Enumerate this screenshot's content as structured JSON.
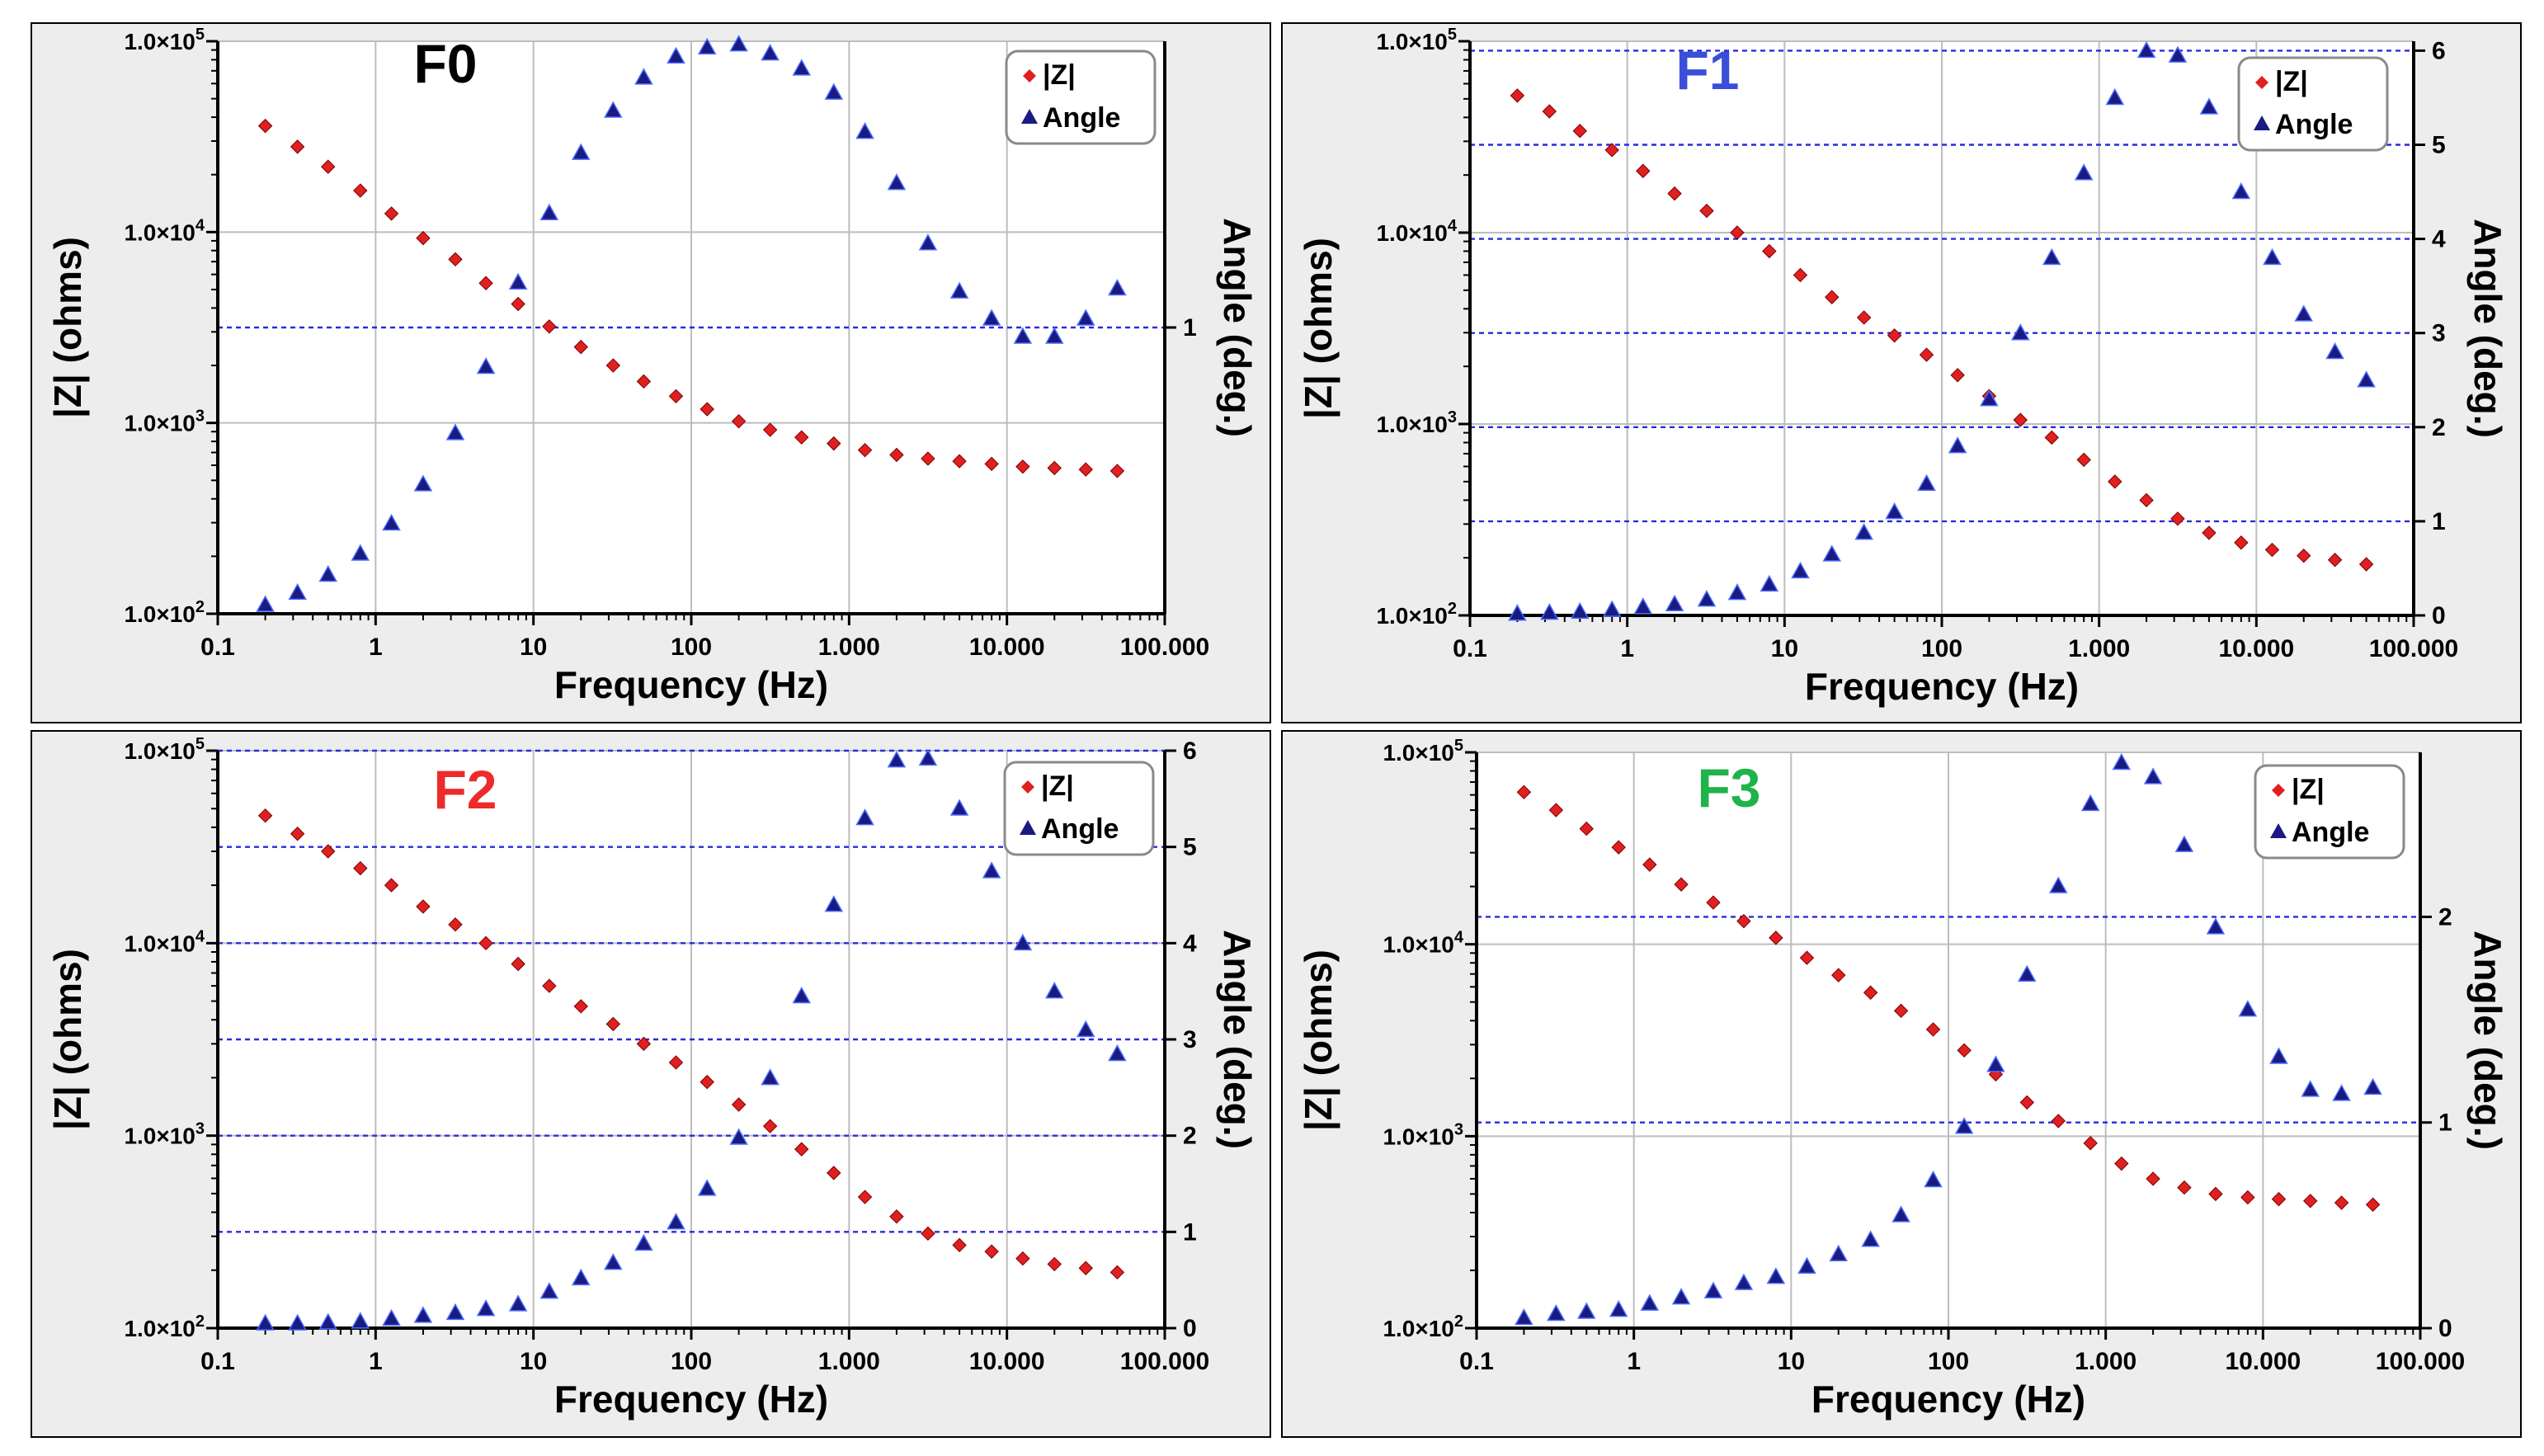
{
  "colors": {
    "panel_background": "#ededed",
    "plot_background": "#ffffff",
    "grid": "#bdbdbd",
    "dashed_grid": "#2a2ae0",
    "z_marker": "#e02020",
    "angle_marker": "#1a1a80",
    "text": "#000000"
  },
  "chart_data": [
    {
      "type": "scatter",
      "title": "F0",
      "title_color": "#000000",
      "xlabel": "Frequency  (Hz)",
      "ylabel_left": "|Z|  (ohms)",
      "ylabel_right": "Angle  (deg.)",
      "x_scale": "log",
      "xlim": [
        0.1,
        100000
      ],
      "x_ticks": [
        {
          "v": 0.1,
          "label": "0.1"
        },
        {
          "v": 1,
          "label": "1"
        },
        {
          "v": 10,
          "label": "10"
        },
        {
          "v": 100,
          "label": "100"
        },
        {
          "v": 1000,
          "label": "1.000"
        },
        {
          "v": 10000,
          "label": "10.000"
        },
        {
          "v": 100000,
          "label": "100.000"
        }
      ],
      "y_left_scale": "log",
      "ylim_left": [
        100,
        100000
      ],
      "y_left_ticks": [
        {
          "v": 100,
          "m": "1.0×10",
          "e": "2"
        },
        {
          "v": 1000,
          "m": "1.0×10",
          "e": "3"
        },
        {
          "v": 10000,
          "m": "1.0×10",
          "e": "4"
        },
        {
          "v": 100000,
          "m": "1.0×10",
          "e": "5"
        }
      ],
      "ylim_right": [
        0.05,
        1.95
      ],
      "y_right_ticks": [
        {
          "v": 1,
          "label": "1"
        }
      ],
      "dashed_gridlines_right": [
        1
      ],
      "legend": [
        "|Z|",
        "Angle"
      ],
      "legend_position": "top-right",
      "series": [
        {
          "name": "|Z|",
          "marker": "diamond",
          "x": [
            0.2,
            0.32,
            0.5,
            0.8,
            1.26,
            2,
            3.2,
            5,
            8,
            12.6,
            20,
            32,
            50,
            80,
            126,
            200,
            316,
            500,
            800,
            1260,
            2000,
            3160,
            5000,
            8000,
            12600,
            20000,
            31600,
            50000
          ],
          "y": [
            36000,
            28000,
            22000,
            16500,
            12500,
            9300,
            7200,
            5400,
            4200,
            3200,
            2500,
            2000,
            1650,
            1380,
            1180,
            1020,
            920,
            840,
            780,
            720,
            680,
            650,
            630,
            610,
            590,
            580,
            570,
            560
          ]
        },
        {
          "name": "Angle",
          "marker": "triangle",
          "x": [
            0.2,
            0.32,
            0.5,
            0.8,
            1.26,
            2,
            3.2,
            5,
            8,
            12.6,
            20,
            32,
            50,
            80,
            126,
            200,
            316,
            500,
            800,
            1260,
            2000,
            3160,
            5000,
            8000,
            12600,
            20000,
            31600,
            50000
          ],
          "y": [
            0.08,
            0.12,
            0.18,
            0.25,
            0.35,
            0.48,
            0.65,
            0.87,
            1.15,
            1.38,
            1.58,
            1.72,
            1.83,
            1.9,
            1.93,
            1.94,
            1.91,
            1.86,
            1.78,
            1.65,
            1.48,
            1.28,
            1.12,
            1.03,
            0.97,
            0.97,
            1.03,
            1.13
          ]
        }
      ]
    },
    {
      "type": "scatter",
      "title": "F1",
      "title_color": "#3a4fd8",
      "xlabel": "Frequency  (Hz)",
      "ylabel_left": "|Z|  (ohms)",
      "ylabel_right": "Angle  (deg.)",
      "x_scale": "log",
      "xlim": [
        0.1,
        100000
      ],
      "x_ticks": [
        {
          "v": 0.1,
          "label": "0.1"
        },
        {
          "v": 1,
          "label": "1"
        },
        {
          "v": 10,
          "label": "10"
        },
        {
          "v": 100,
          "label": "100"
        },
        {
          "v": 1000,
          "label": "1.000"
        },
        {
          "v": 10000,
          "label": "10.000"
        },
        {
          "v": 100000,
          "label": "100.000"
        }
      ],
      "y_left_scale": "log",
      "ylim_left": [
        100,
        100000
      ],
      "y_left_ticks": [
        {
          "v": 100,
          "m": "1.0×10",
          "e": "2"
        },
        {
          "v": 1000,
          "m": "1.0×10",
          "e": "3"
        },
        {
          "v": 10000,
          "m": "1.0×10",
          "e": "4"
        },
        {
          "v": 100000,
          "m": "1.0×10",
          "e": "5"
        }
      ],
      "ylim_right": [
        0,
        6.1
      ],
      "y_right_ticks": [
        {
          "v": 0,
          "label": "0"
        },
        {
          "v": 1,
          "label": "1"
        },
        {
          "v": 2,
          "label": "2"
        },
        {
          "v": 3,
          "label": "3"
        },
        {
          "v": 4,
          "label": "4"
        },
        {
          "v": 5,
          "label": "5"
        },
        {
          "v": 6,
          "label": "6"
        }
      ],
      "dashed_gridlines_right": [
        1,
        2,
        3,
        4,
        5,
        6
      ],
      "legend": [
        "|Z|",
        "Angle"
      ],
      "legend_position": "top-right",
      "series": [
        {
          "name": "|Z|",
          "marker": "diamond",
          "x": [
            0.2,
            0.32,
            0.5,
            0.8,
            1.26,
            2,
            3.2,
            5,
            8,
            12.6,
            20,
            32,
            50,
            80,
            126,
            200,
            316,
            500,
            800,
            1260,
            2000,
            3160,
            5000,
            8000,
            12600,
            20000,
            31600,
            50000
          ],
          "y": [
            52000,
            43000,
            34000,
            27000,
            21000,
            16000,
            13000,
            10000,
            8000,
            6000,
            4600,
            3600,
            2900,
            2300,
            1800,
            1400,
            1050,
            850,
            650,
            500,
            400,
            320,
            270,
            240,
            220,
            205,
            195,
            185
          ]
        },
        {
          "name": "Angle",
          "marker": "triangle",
          "x": [
            0.2,
            0.32,
            0.5,
            0.8,
            1.26,
            2,
            3.2,
            5,
            8,
            12.6,
            20,
            32,
            50,
            80,
            126,
            200,
            316,
            500,
            800,
            1260,
            2000,
            3160,
            5000,
            8000,
            12600,
            20000,
            31600,
            50000
          ],
          "y": [
            0.02,
            0.03,
            0.04,
            0.06,
            0.09,
            0.12,
            0.17,
            0.24,
            0.33,
            0.47,
            0.65,
            0.88,
            1.1,
            1.4,
            1.8,
            2.3,
            3.0,
            3.8,
            4.7,
            5.5,
            6.0,
            5.95,
            5.4,
            4.5,
            3.8,
            3.2,
            2.8,
            2.5
          ]
        }
      ]
    },
    {
      "type": "scatter",
      "title": "F2",
      "title_color": "#ee2b2b",
      "xlabel": "Frequency  (Hz)",
      "ylabel_left": "|Z|  (ohms)",
      "ylabel_right": "Angle  (deg.)",
      "x_scale": "log",
      "xlim": [
        0.1,
        100000
      ],
      "x_ticks": [
        {
          "v": 0.1,
          "label": "0.1"
        },
        {
          "v": 1,
          "label": "1"
        },
        {
          "v": 10,
          "label": "10"
        },
        {
          "v": 100,
          "label": "100"
        },
        {
          "v": 1000,
          "label": "1.000"
        },
        {
          "v": 10000,
          "label": "10.000"
        },
        {
          "v": 100000,
          "label": "100.000"
        }
      ],
      "y_left_scale": "log",
      "ylim_left": [
        100,
        100000
      ],
      "y_left_ticks": [
        {
          "v": 100,
          "m": "1.0×10",
          "e": "2"
        },
        {
          "v": 1000,
          "m": "1.0×10",
          "e": "3"
        },
        {
          "v": 10000,
          "m": "1.0×10",
          "e": "4"
        },
        {
          "v": 100000,
          "m": "1.0×10",
          "e": "5"
        }
      ],
      "ylim_right": [
        0,
        6
      ],
      "y_right_ticks": [
        {
          "v": 0,
          "label": "0"
        },
        {
          "v": 1,
          "label": "1"
        },
        {
          "v": 2,
          "label": "2"
        },
        {
          "v": 3,
          "label": "3"
        },
        {
          "v": 4,
          "label": "4"
        },
        {
          "v": 5,
          "label": "5"
        },
        {
          "v": 6,
          "label": "6"
        }
      ],
      "dashed_gridlines_right": [
        1,
        2,
        3,
        4,
        5,
        6
      ],
      "legend": [
        "|Z|",
        "Angle"
      ],
      "legend_position": "top-right",
      "series": [
        {
          "name": "|Z|",
          "marker": "diamond",
          "x": [
            0.2,
            0.32,
            0.5,
            0.8,
            1.26,
            2,
            3.2,
            5,
            8,
            12.6,
            20,
            32,
            50,
            80,
            126,
            200,
            316,
            500,
            800,
            1260,
            2000,
            3160,
            5000,
            8000,
            12600,
            20000,
            31600,
            50000
          ],
          "y": [
            46000,
            37000,
            30000,
            24500,
            20000,
            15500,
            12500,
            10000,
            7800,
            6000,
            4700,
            3800,
            3000,
            2400,
            1900,
            1450,
            1120,
            850,
            640,
            480,
            380,
            310,
            270,
            250,
            230,
            215,
            205,
            195
          ]
        },
        {
          "name": "Angle",
          "marker": "triangle",
          "x": [
            0.2,
            0.32,
            0.5,
            0.8,
            1.26,
            2,
            3.2,
            5,
            8,
            12.6,
            20,
            32,
            50,
            80,
            126,
            200,
            316,
            500,
            800,
            1260,
            2000,
            3160,
            5000,
            8000,
            12600,
            20000,
            31600,
            50000
          ],
          "y": [
            0.05,
            0.05,
            0.06,
            0.07,
            0.1,
            0.13,
            0.16,
            0.2,
            0.25,
            0.38,
            0.52,
            0.68,
            0.88,
            1.1,
            1.45,
            1.98,
            2.6,
            3.45,
            4.4,
            5.3,
            5.9,
            5.92,
            5.4,
            4.75,
            4.0,
            3.5,
            3.1,
            2.85
          ]
        }
      ]
    },
    {
      "type": "scatter",
      "title": "F3",
      "title_color": "#1fb34a",
      "xlabel": "Frequency  (Hz)",
      "ylabel_left": "|Z|  (ohms)",
      "ylabel_right": "Angle  (deg.)",
      "x_scale": "log",
      "xlim": [
        0.1,
        100000
      ],
      "x_ticks": [
        {
          "v": 0.1,
          "label": "0.1"
        },
        {
          "v": 1,
          "label": "1"
        },
        {
          "v": 10,
          "label": "10"
        },
        {
          "v": 100,
          "label": "100"
        },
        {
          "v": 1000,
          "label": "1.000"
        },
        {
          "v": 10000,
          "label": "10.000"
        },
        {
          "v": 100000,
          "label": "100.000"
        }
      ],
      "y_left_scale": "log",
      "ylim_left": [
        100,
        100000
      ],
      "y_left_ticks": [
        {
          "v": 100,
          "m": "1.0×10",
          "e": "2"
        },
        {
          "v": 1000,
          "m": "1.0×10",
          "e": "3"
        },
        {
          "v": 10000,
          "m": "1.0×10",
          "e": "4"
        },
        {
          "v": 100000,
          "m": "1.0×10",
          "e": "5"
        }
      ],
      "ylim_right": [
        0,
        2.8
      ],
      "y_right_ticks": [
        {
          "v": 0,
          "label": "0"
        },
        {
          "v": 1,
          "label": "1"
        },
        {
          "v": 2,
          "label": "2"
        }
      ],
      "dashed_gridlines_right": [
        1,
        2
      ],
      "legend": [
        "|Z|",
        "Angle"
      ],
      "legend_position": "top-right",
      "series": [
        {
          "name": "|Z|",
          "marker": "diamond",
          "x": [
            0.2,
            0.32,
            0.5,
            0.8,
            1.26,
            2,
            3.2,
            5,
            8,
            12.6,
            20,
            32,
            50,
            80,
            126,
            200,
            316,
            500,
            800,
            1260,
            2000,
            3160,
            5000,
            8000,
            12600,
            20000,
            31600,
            50000
          ],
          "y": [
            62000,
            50000,
            40000,
            32000,
            26000,
            20500,
            16500,
            13200,
            10800,
            8500,
            6900,
            5600,
            4500,
            3600,
            2800,
            2100,
            1500,
            1200,
            920,
            720,
            600,
            540,
            500,
            480,
            470,
            460,
            450,
            440
          ]
        },
        {
          "name": "Angle",
          "marker": "triangle",
          "x": [
            0.2,
            0.32,
            0.5,
            0.8,
            1.26,
            2,
            3.2,
            5,
            8,
            12.6,
            20,
            32,
            50,
            80,
            126,
            200,
            316,
            500,
            800,
            1260,
            2000,
            3160,
            5000,
            8000,
            12600,
            20000,
            31600,
            50000
          ],
          "y": [
            0.05,
            0.07,
            0.08,
            0.09,
            0.12,
            0.15,
            0.18,
            0.22,
            0.25,
            0.3,
            0.36,
            0.43,
            0.55,
            0.72,
            0.98,
            1.28,
            1.72,
            2.15,
            2.55,
            2.75,
            2.68,
            2.35,
            1.95,
            1.55,
            1.32,
            1.16,
            1.14,
            1.17
          ]
        }
      ]
    }
  ]
}
